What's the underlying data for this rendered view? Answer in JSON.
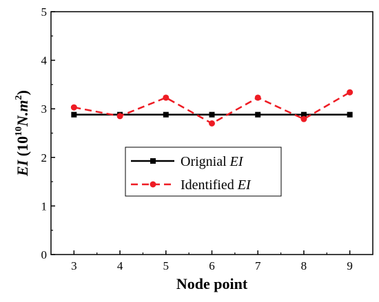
{
  "chart_data": {
    "type": "line",
    "xlabel": "Node point",
    "ylabel": {
      "prefix": "EI",
      "open": " (10",
      "exp1": "10",
      "unit": "N.m",
      "exp2": "2",
      "close": ")"
    },
    "xlim": [
      2.5,
      9.5
    ],
    "ylim": [
      0,
      5
    ],
    "x": [
      3,
      4,
      5,
      6,
      7,
      8,
      9
    ],
    "x_ticks": [
      "3",
      "4",
      "5",
      "6",
      "7",
      "8",
      "9"
    ],
    "y_ticks": [
      "0",
      "1",
      "2",
      "3",
      "4",
      "5"
    ],
    "grid": false,
    "legend_position": "center-left",
    "series": [
      {
        "name_text": "Orignial ",
        "name_italic": "EI",
        "values": [
          2.88,
          2.88,
          2.88,
          2.88,
          2.88,
          2.88,
          2.88
        ],
        "color": "#000000",
        "marker": "square",
        "line_style": "solid"
      },
      {
        "name_text": "Identified ",
        "name_italic": "EI",
        "values": [
          3.03,
          2.85,
          3.23,
          2.7,
          3.23,
          2.79,
          3.34
        ],
        "color": "#ee1c24",
        "marker": "circle",
        "line_style": "dashed"
      }
    ]
  }
}
